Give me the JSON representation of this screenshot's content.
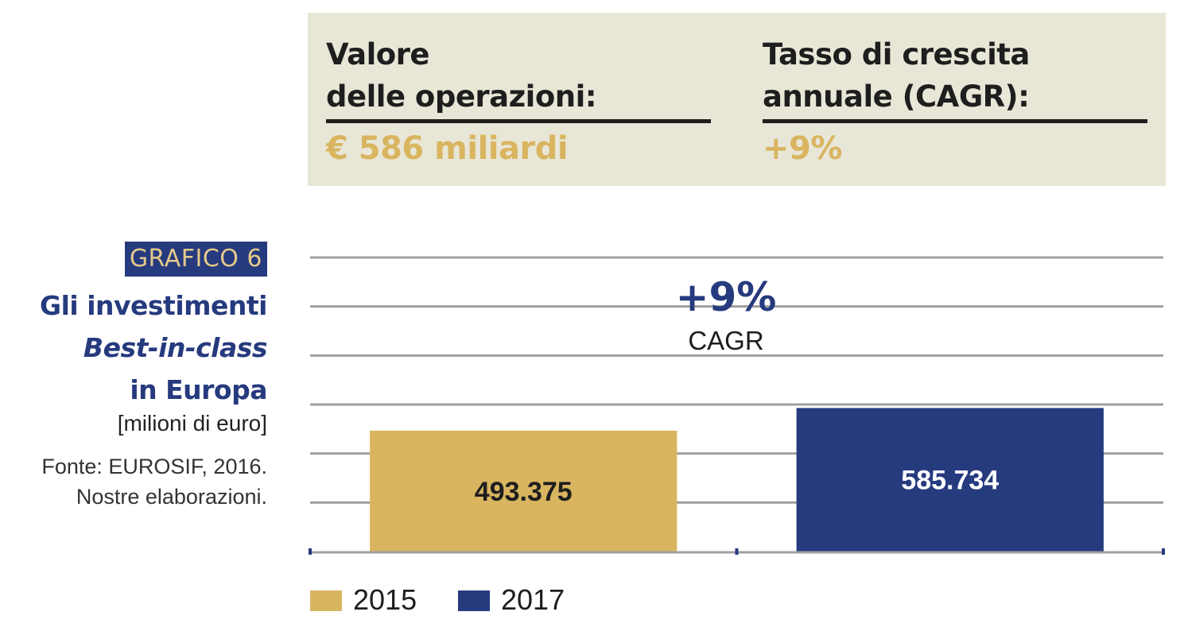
{
  "info_panel": {
    "col1_label": "Valore\ndelle operazioni:",
    "col1_value": "€ 586 miliardi",
    "col2_label": "Tasso di crescita\nannuale (CAGR):",
    "col2_value": "+9%"
  },
  "caption": {
    "number": "GRAFICO 6",
    "title_line1": "Gli investimenti",
    "title_line2": "Best-in-class",
    "title_line3": "in Europa",
    "unit": "[milioni di euro]",
    "source_line1": "Fonte: EUROSIF, 2016.",
    "source_line2": "Nostre elaborazioni."
  },
  "colors": {
    "gold": "#d9b560",
    "navy": "#263a7e",
    "panel_bg": "#e8e6d6",
    "grid": "#a0a0a0"
  },
  "chart_data": {
    "type": "bar",
    "title": "Gli investimenti Best-in-class in Europa",
    "ylabel": "[milioni di euro]",
    "categories": [
      "2015",
      "2017"
    ],
    "values": [
      493375,
      585734
    ],
    "value_labels": [
      "493.375",
      "585.734"
    ],
    "colors": [
      "#d9b560",
      "#263a7e"
    ],
    "ylim": [
      0,
      1200000
    ],
    "grid": true,
    "legend": [
      "2015",
      "2017"
    ],
    "legend_position": "bottom-left",
    "annotation": {
      "value": "+9%",
      "label": "CAGR"
    }
  }
}
